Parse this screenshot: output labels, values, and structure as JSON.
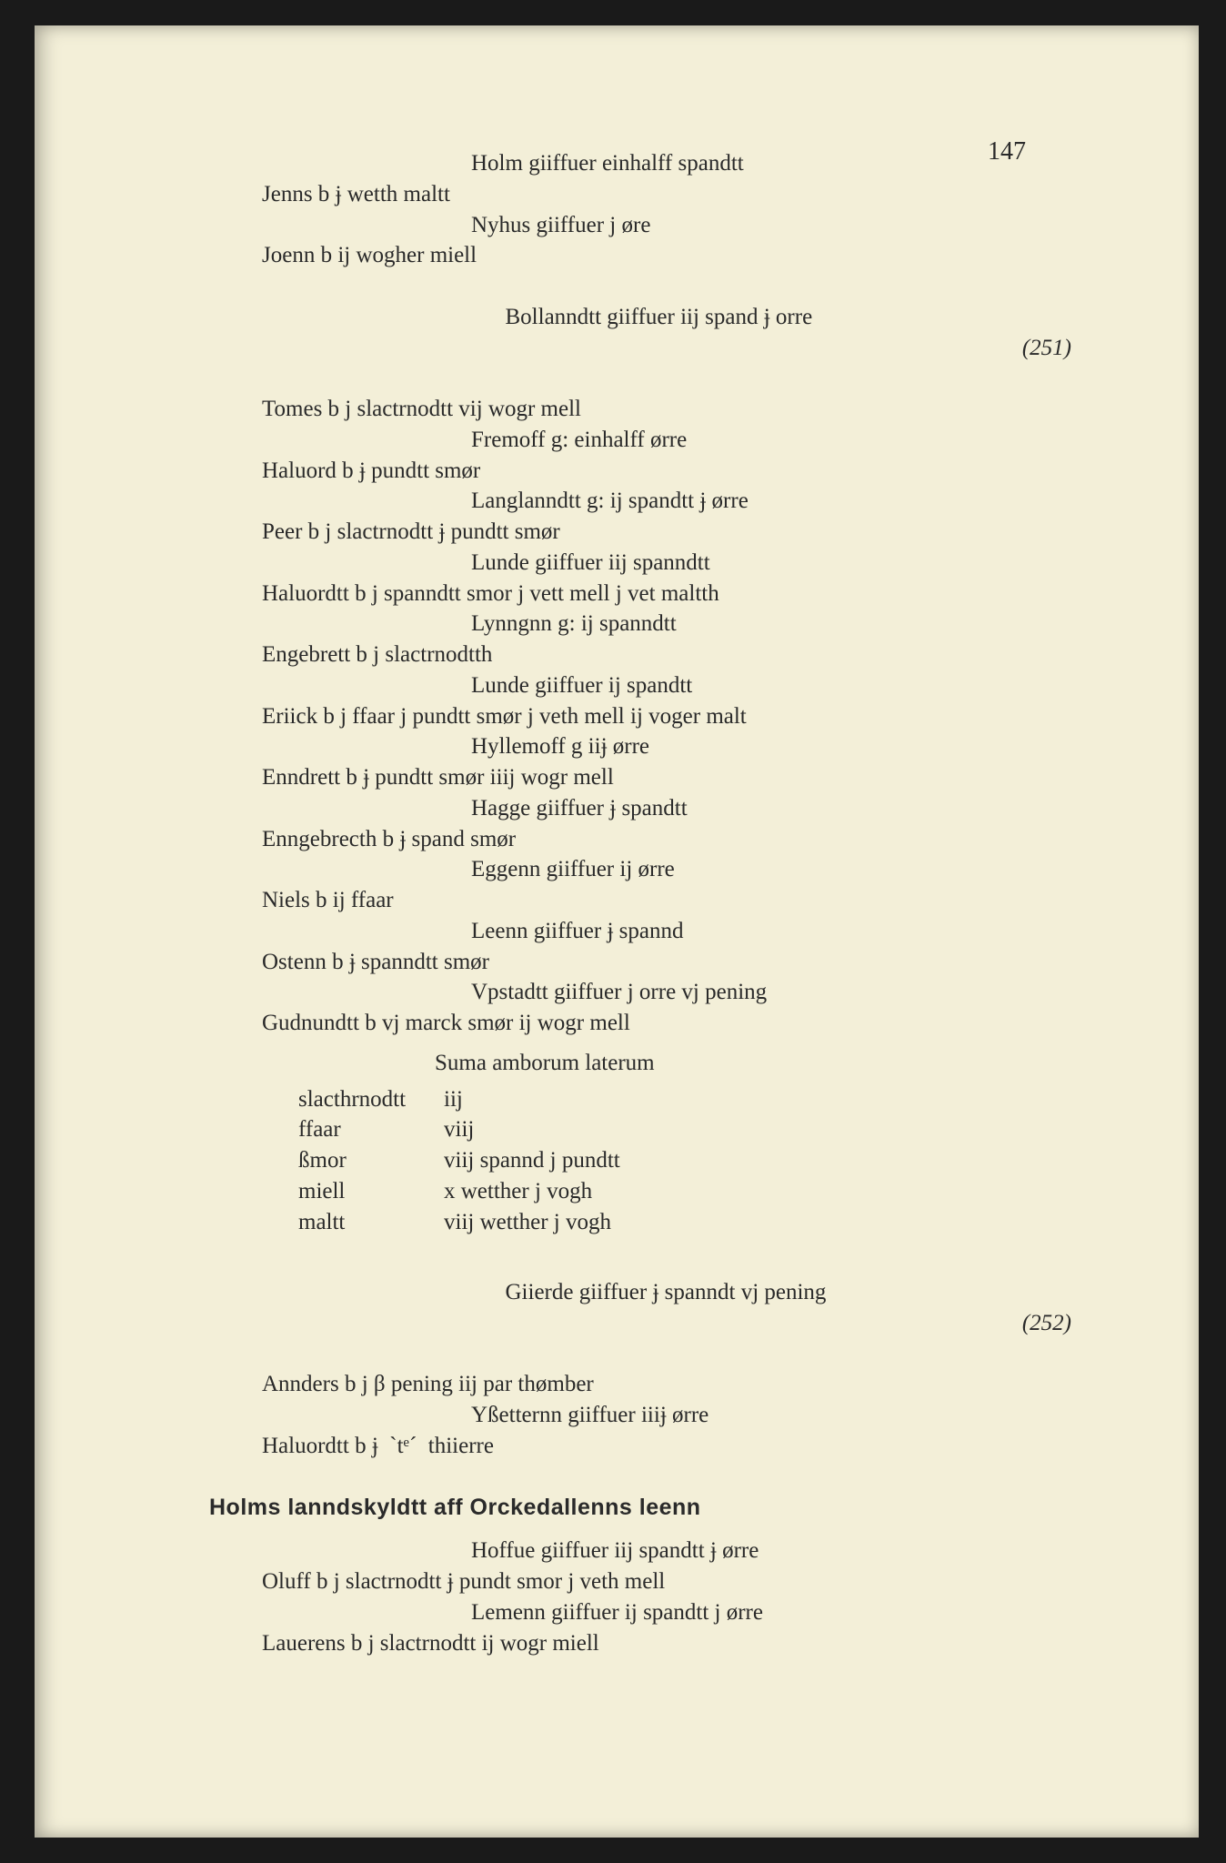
{
  "page_number": "147",
  "marginal_refs": {
    "r251": "(251)",
    "r252": "(252)"
  },
  "lines": {
    "l1": "Holm giiffuer einhalff spandtt",
    "l2": "Jenns b ɉ wetth maltt",
    "l3": "Nyhus giiffuer j øre",
    "l4": "Joenn b ij wogher miell",
    "l5": "Bollanndtt giiffuer iij spand ɉ orre",
    "l6": "Tomes b j slactrnodtt vij wogr mell",
    "l7": "Fremoff g: einhalff ørre",
    "l8": "Haluord b ɉ pundtt smør",
    "l9": "Langlanndtt g: ij spandtt ɉ ørre",
    "l10": "Peer b j slactrnodtt ɉ pundtt smør",
    "l11": "Lunde giiffuer iij spanndtt",
    "l12": "Haluordtt b j spanndtt smor j vett mell j vet maltth",
    "l13": "Lynngnn g: ij spanndtt",
    "l14": "Engebrett b j slactrnodtth",
    "l15": "Lunde giiffuer ij spandtt",
    "l16": "Eriick b j ffaar j pundtt smør j veth mell ij voger malt",
    "l17": "Hyllemoff g iiɉ ørre",
    "l18": "Enndrett b ɉ pundtt smør iiij wogr mell",
    "l19": "Hagge giiffuer ɉ spandtt",
    "l20": "Enngebrecth b ɉ spand smør",
    "l21": "Eggenn giiffuer ij ørre",
    "l22": "Niels b ij ffaar",
    "l23": "Leenn giiffuer ɉ spannd",
    "l24": "Ostenn b ɉ spanndtt smør",
    "l25": "Vpstadtt giiffuer j orre vj pening",
    "l26": "Gudnundtt b vj marck smør ij wogr mell",
    "suma": "Suma amborum laterum",
    "t1l": "slacthrnodtt",
    "t1r": "iij",
    "t2l": "ffaar",
    "t2r": "viij",
    "t3l": "ßmor",
    "t3r": "viij spannd j pundtt",
    "t4l": "miell",
    "t4r": "x wetther j vogh",
    "t5l": "maltt",
    "t5r": "viij wetther j vogh",
    "l27": "Giierde giiffuer ɉ spanndt vj pening",
    "l28": "Annders b j β pening iij par thømber",
    "l29": "Yßetternn giiffuer iiiɉ ørre",
    "l30": "Haluordtt b ɉ  ˋtᵉˊ  thiierre",
    "section": "Holms lanndskyldtt aff Orckedallenns leenn",
    "l31": "Hoffue giiffuer iij spandtt ɉ ørre",
    "l32": "Oluff b j slactrnodtt ɉ pundt smor j veth mell",
    "l33": "Lemenn giiffuer ij spandtt j ørre",
    "l34": "Lauerens b j slactrnodtt ij wogr miell"
  }
}
